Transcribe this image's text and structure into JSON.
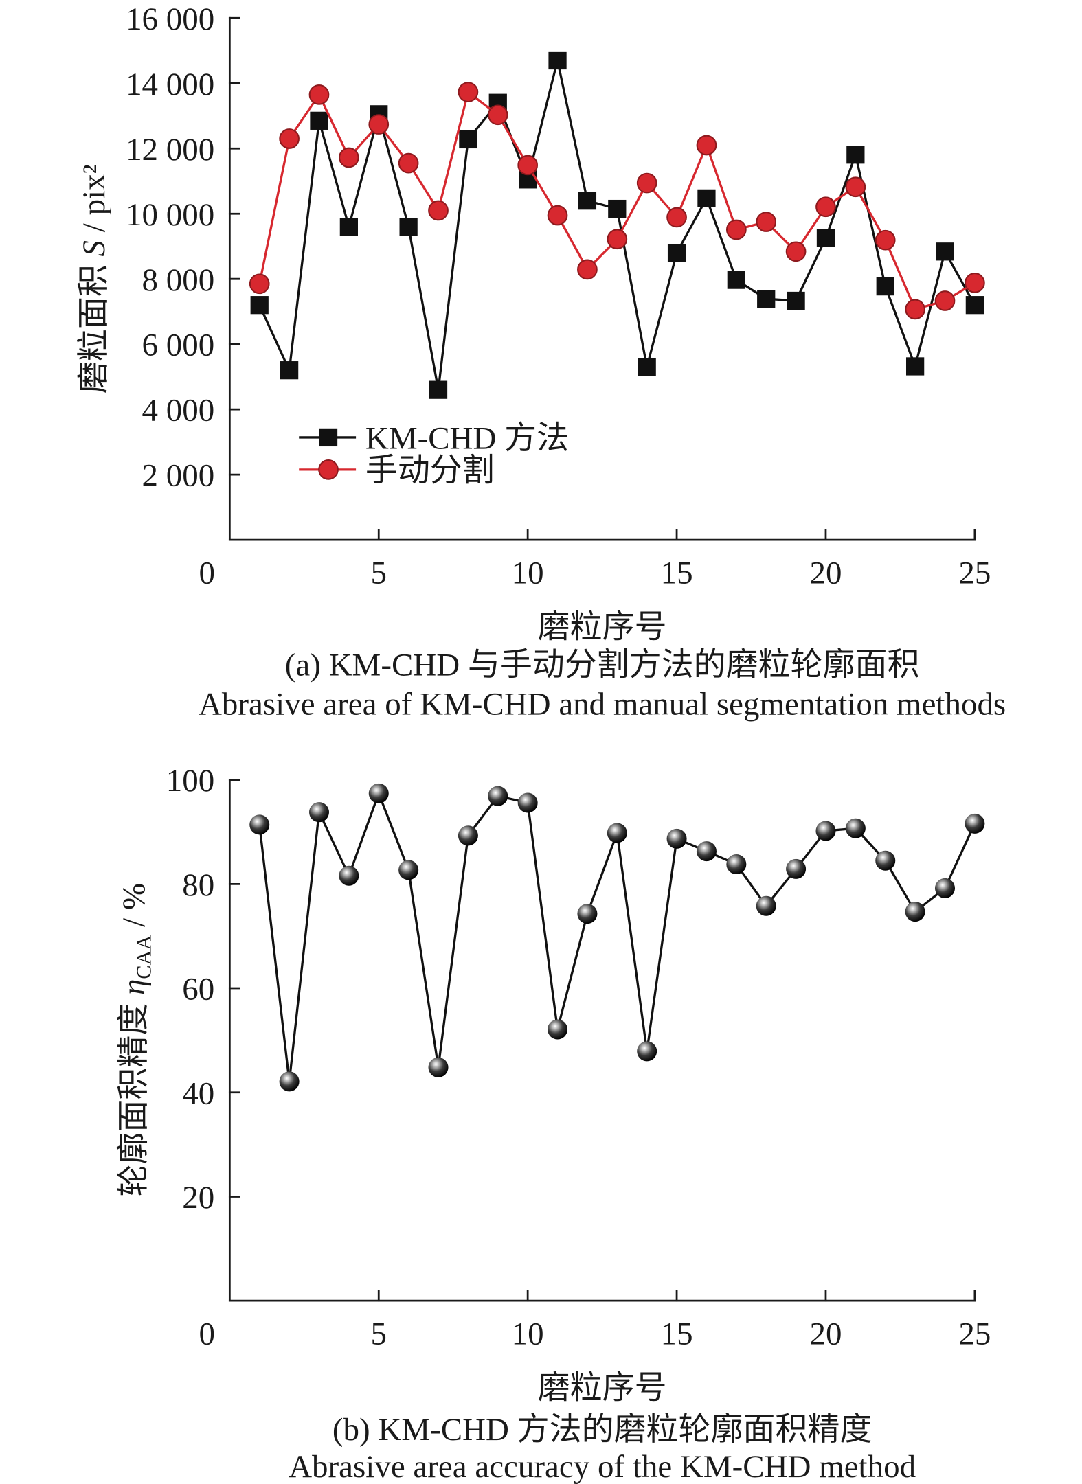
{
  "captions": {
    "a_zh": "(a) KM-CHD 与手动分割方法的磨粒轮廓面积",
    "a_en": "Abrasive area of KM-CHD and manual segmentation methods",
    "b_zh": "(b) KM-CHD 方法的磨粒轮廓面积精度",
    "b_en": "Abrasive area accuracy of the KM-CHD method"
  },
  "chart_data": [
    {
      "type": "line",
      "xlabel": "磨粒序号",
      "ylabel": "磨粒面积 S / pix²",
      "xlim": [
        0,
        25
      ],
      "ylim": [
        0,
        16000
      ],
      "xticks": [
        0,
        5,
        10,
        15,
        20,
        25
      ],
      "xticklabels": [
        "0",
        "5",
        "10",
        "15",
        "20",
        "25"
      ],
      "yticks": [
        2000,
        4000,
        6000,
        8000,
        10000,
        12000,
        14000,
        16000
      ],
      "yticklabels": [
        "2 000",
        "4 000",
        "6 000",
        "8 000",
        "10 000",
        "12 000",
        "14 000",
        "16 000"
      ],
      "grid": false,
      "legend": "lower-left",
      "x": [
        1,
        2,
        3,
        4,
        5,
        6,
        7,
        8,
        9,
        10,
        11,
        12,
        13,
        14,
        15,
        16,
        17,
        18,
        19,
        20,
        21,
        22,
        23,
        24,
        25
      ],
      "series": [
        {
          "name": "KM-CHD 方法",
          "marker": "square",
          "color": "#111111",
          "values": [
            7200,
            5200,
            12850,
            9600,
            13050,
            9600,
            4600,
            12280,
            13400,
            11050,
            14700,
            10400,
            10150,
            5300,
            8800,
            10470,
            7970,
            7390,
            7330,
            9250,
            11810,
            7770,
            5320,
            8840,
            7200
          ]
        },
        {
          "name": "手动分割",
          "marker": "circle",
          "color": "#d7282f",
          "values": [
            7850,
            12300,
            13650,
            11720,
            12740,
            11550,
            10100,
            13730,
            13030,
            11490,
            9950,
            8290,
            9220,
            10940,
            9890,
            12100,
            9510,
            9750,
            8840,
            10210,
            10820,
            9190,
            7070,
            7330,
            7880
          ]
        }
      ]
    },
    {
      "type": "line",
      "xlabel": "磨粒序号",
      "ylabel": "轮廓面积精度 ηCAA / %",
      "xlim": [
        0,
        25
      ],
      "ylim": [
        0,
        100
      ],
      "xticks": [
        0,
        5,
        10,
        15,
        20,
        25
      ],
      "xticklabels": [
        "0",
        "5",
        "10",
        "15",
        "20",
        "25"
      ],
      "yticks": [
        20,
        40,
        60,
        80,
        100
      ],
      "yticklabels": [
        "20",
        "40",
        "60",
        "80",
        "100"
      ],
      "grid": false,
      "x": [
        1,
        2,
        3,
        4,
        5,
        6,
        7,
        8,
        9,
        10,
        11,
        12,
        13,
        14,
        15,
        16,
        17,
        18,
        19,
        20,
        21,
        22,
        23,
        24,
        25
      ],
      "series": [
        {
          "marker": "sphere",
          "color": "#111111",
          "values": [
            91.4,
            42.1,
            93.8,
            81.6,
            97.4,
            82.7,
            44.8,
            89.3,
            96.9,
            95.6,
            52.1,
            74.3,
            89.8,
            47.9,
            88.7,
            86.3,
            83.8,
            75.8,
            82.9,
            90.2,
            90.7,
            84.5,
            74.7,
            79.2,
            91.6
          ]
        }
      ]
    }
  ]
}
